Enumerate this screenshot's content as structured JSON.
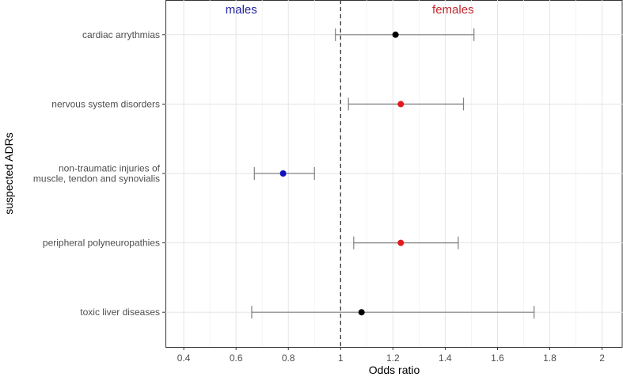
{
  "chart_data": {
    "type": "forest",
    "xlabel": "Odds ratio",
    "ylabel": "suspected ADRs",
    "xlim": [
      0.33,
      2.08
    ],
    "x_ticks": [
      0.4,
      0.6,
      0.8,
      1,
      1.2,
      1.4,
      1.6,
      1.8,
      2
    ],
    "x_tick_labels": [
      "0.4",
      "0.6",
      "0.8",
      "1",
      "1.2",
      "1.4",
      "1.6",
      "1.8",
      "2"
    ],
    "reference_line": 1,
    "grid": true,
    "group_labels": {
      "left": {
        "text": "males",
        "color": "#1f1fa0"
      },
      "right": {
        "text": "females",
        "color": "#c0282d"
      }
    },
    "categories": [
      {
        "label": [
          "cardiac arrythmias"
        ],
        "or": 1.21,
        "lower": 0.98,
        "upper": 1.51,
        "color": "#000000"
      },
      {
        "label": [
          "nervous system disorders"
        ],
        "or": 1.23,
        "lower": 1.03,
        "upper": 1.47,
        "color": "#e31a1c"
      },
      {
        "label": [
          "non-traumatic injuries of",
          "muscle, tendon and synovialis"
        ],
        "or": 0.78,
        "lower": 0.67,
        "upper": 0.9,
        "color": "#1010c0"
      },
      {
        "label": [
          "peripheral polyneuropathies"
        ],
        "or": 1.23,
        "lower": 1.05,
        "upper": 1.45,
        "color": "#e31a1c"
      },
      {
        "label": [
          "toxic liver diseases"
        ],
        "or": 1.08,
        "lower": 0.66,
        "upper": 1.74,
        "color": "#000000"
      }
    ]
  }
}
